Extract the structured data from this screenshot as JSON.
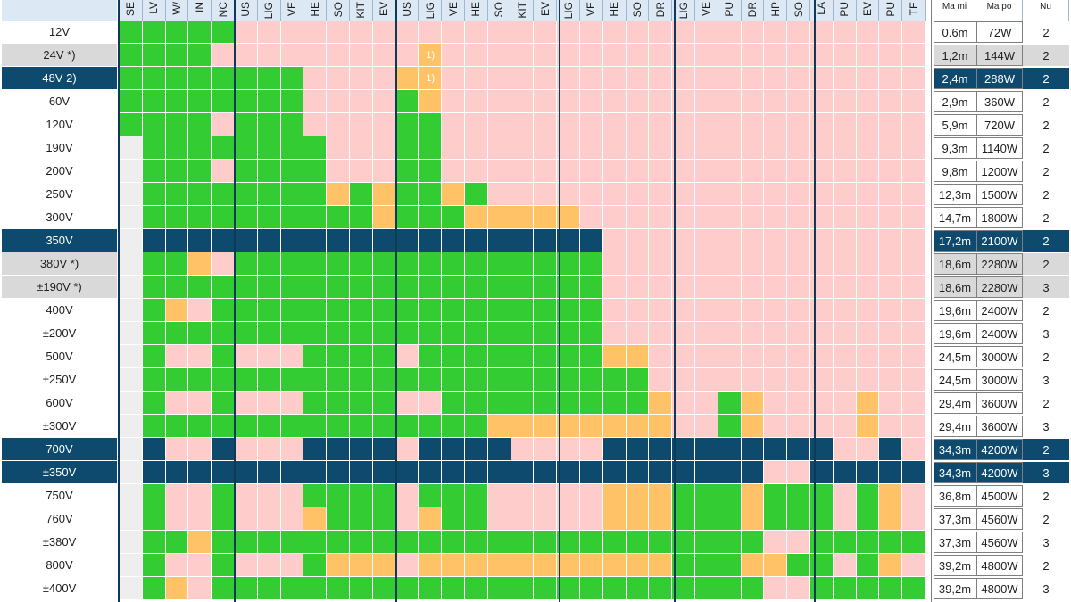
{
  "colors": {
    "green": "#33cc33",
    "pink": "#ffcccc",
    "orange": "#ffc266",
    "blue": "#0e4a6e",
    "gray": "#eeeeee",
    "white": "#ffffff"
  },
  "columns": [
    "SE",
    "LV",
    "W/",
    "IN",
    "NC",
    "US",
    "LIG",
    "VE",
    "HE",
    "SO",
    "KIT",
    "EV",
    "US",
    "LIG",
    "VE",
    "HE",
    "SO",
    "KIT",
    "EV",
    "LIG",
    "VE",
    "HE",
    "SO",
    "DR",
    "LIG",
    "VE",
    "PU",
    "DR",
    "HP",
    "SO",
    "LA",
    "PU",
    "EV",
    "PU",
    "TE"
  ],
  "right_headers": [
    "Ma mi",
    "Ma po",
    "Nu"
  ],
  "rows": [
    {
      "label": "12V",
      "style": "",
      "length": "0.6m",
      "power": "72W",
      "num": "2",
      "cells": "GGGGGPPPPPPPPPPPPPPPPPPPPPPPPPPPPPP",
      "notes": {}
    },
    {
      "label": "24V *)",
      "style": "alt",
      "length": "1,2m",
      "power": "144W",
      "num": "2",
      "cells": "GGGGPPPPPPPPPOPPPPPPPPPPPPPPPPPPPPP",
      "notes": {
        "13": "1)"
      }
    },
    {
      "label": "48V 2)",
      "style": "sel",
      "length": "2,4m",
      "power": "288W",
      "num": "2",
      "cells": "GGGGGGGGPPPPOOPPPPPPPPPPPPPPPPPPPPP",
      "notes": {
        "13": "1)"
      }
    },
    {
      "label": "60V",
      "style": "",
      "length": "2,9m",
      "power": "360W",
      "num": "2",
      "cells": "GGGGGGGGPPPPGOPPPPPPPPPPPPPPPPPPPPP",
      "notes": {}
    },
    {
      "label": "120V",
      "style": "",
      "length": "5,9m",
      "power": "720W",
      "num": "2",
      "cells": "GGGGPGGGPPPPGGPPPPPPPPPPPPPPPPPPPPP",
      "notes": {}
    },
    {
      "label": "190V",
      "style": "",
      "length": "9,3m",
      "power": "1140W",
      "num": "2",
      "cells": "WGGGGGGGGPPPGGPPPPPPPPPPPPPPPPPPPPP",
      "notes": {}
    },
    {
      "label": "200V",
      "style": "",
      "length": "9,8m",
      "power": "1200W",
      "num": "2",
      "cells": "WGGGPGGGGPPPGGPPPPPPPPPPPPPPPPPPPPP",
      "notes": {}
    },
    {
      "label": "250V",
      "style": "",
      "length": "12,3m",
      "power": "1500W",
      "num": "2",
      "cells": "WGGGGGGGGOGOGGOGPPPPPPPPPPPPPPPPPPP",
      "notes": {}
    },
    {
      "label": "300V",
      "style": "",
      "length": "14,7m",
      "power": "1800W",
      "num": "2",
      "cells": "WGGGGGGGGGGOGGGOOOOOPPPPPPPPPPPPPPP",
      "notes": {}
    },
    {
      "label": "350V",
      "style": "sel",
      "length": "17,2m",
      "power": "2100W",
      "num": "2",
      "cells": "WBBBBBBBBBBBBBBBBBBBBPPPPPPPPPPPPPP",
      "notes": {}
    },
    {
      "label": "380V *)",
      "style": "alt",
      "length": "18,6m",
      "power": "2280W",
      "num": "2",
      "cells": "WGGOPGGGGGGGGGGGGGGGGPPPPPPPPPPPPPP",
      "notes": {}
    },
    {
      "label": "±190V *)",
      "style": "alt",
      "length": "18,6m",
      "power": "2280W",
      "num": "3",
      "cells": "WGGGGGGGGGGGGGGGGGGGGPPPPPPPPPPPPPP",
      "notes": {}
    },
    {
      "label": "400V",
      "style": "",
      "length": "19,6m",
      "power": "2400W",
      "num": "2",
      "cells": "WGOPGGGGGGGGGGGGGGGGGPPPPPPPPPPPPPP",
      "notes": {}
    },
    {
      "label": "±200V",
      "style": "",
      "length": "19,6m",
      "power": "2400W",
      "num": "3",
      "cells": "WGGGGGGGGGGGGGGGGGGGGPPPPPPPPPPPPPP",
      "notes": {}
    },
    {
      "label": "500V",
      "style": "",
      "length": "24,5m",
      "power": "3000W",
      "num": "2",
      "cells": "WGPPGPPPGGGGPGGGGGGGGOOPPPPPPPPPPPP",
      "notes": {}
    },
    {
      "label": "±250V",
      "style": "",
      "length": "24,5m",
      "power": "3000W",
      "num": "3",
      "cells": "WGGGGGGGGGGGGGGGGGGGGGGPPPPPPPPPPPP",
      "notes": {}
    },
    {
      "label": "600V",
      "style": "",
      "length": "29,4m",
      "power": "3600W",
      "num": "2",
      "cells": "WGPPGPPPGGGGPPGGGGGGGGGOPPGOPPPPOPP",
      "notes": {}
    },
    {
      "label": "±300V",
      "style": "",
      "length": "29,4m",
      "power": "3600W",
      "num": "3",
      "cells": "WGGGGGGGGGGGGGGGOOOOOOOOPPGOPPPPOPP",
      "notes": {}
    },
    {
      "label": "700V",
      "style": "sel",
      "length": "34,3m",
      "power": "4200W",
      "num": "2",
      "cells": "WBPPBPPPBBBBPBBBBPPPPBBBBBBBBBBPPBP",
      "notes": {}
    },
    {
      "label": "±350V",
      "style": "sel",
      "length": "34,3m",
      "power": "4200W",
      "num": "3",
      "cells": "WBBBBBBBBBBBBBBBBBBBBBBBBBBBPPBBBBB",
      "notes": {}
    },
    {
      "label": "750V",
      "style": "",
      "length": "36,8m",
      "power": "4500W",
      "num": "2",
      "cells": "WGPPGPPPGGGGPGGGPPPPPOOOGGGOGGGPGOP",
      "notes": {}
    },
    {
      "label": "760V",
      "style": "",
      "length": "37,3m",
      "power": "4560W",
      "num": "2",
      "cells": "WGPPGPPPOGGGPOGGPPPPPOOOGGGOGGGPGOP",
      "notes": {}
    },
    {
      "label": "±380V",
      "style": "",
      "length": "37,3m",
      "power": "4560W",
      "num": "3",
      "cells": "WGGOGGGGGGGGGGGGGGGGGGGGGGGGPPGGGGG",
      "notes": {}
    },
    {
      "label": "800V",
      "style": "",
      "length": "39,2m",
      "power": "4800W",
      "num": "2",
      "cells": "WGPPGPPPGOOOPOOOOOOOOOOOGGGOOGGPGOP",
      "notes": {}
    },
    {
      "label": "±400V",
      "style": "",
      "length": "39,2m",
      "power": "4800W",
      "num": "3",
      "cells": "WGOPGGGGGGGGGGGGGGGGGGGGGGGGPPGGGGG",
      "notes": {}
    }
  ]
}
